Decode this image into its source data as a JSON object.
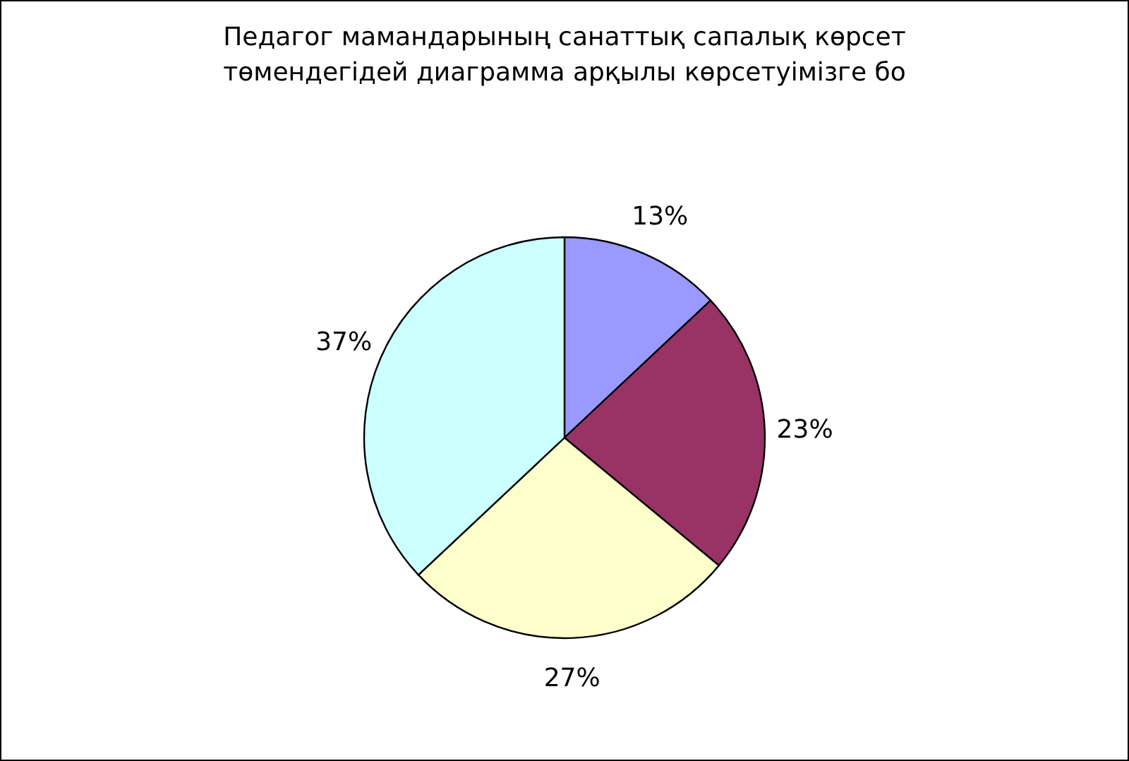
{
  "chart_data": {
    "type": "pie",
    "title": "Педагог мамандарының санаттық сапалық көрсет\nтөмендегідей диаграмма арқылы көрсетуімізге бо",
    "categories": [
      null,
      null,
      null,
      null
    ],
    "values": [
      13,
      23,
      27,
      37
    ],
    "colors": [
      "#9999ff",
      "#993366",
      "#ffffcc",
      "#ccffff"
    ],
    "value_labels": [
      "13%",
      "23%",
      "27%",
      "37%"
    ]
  }
}
